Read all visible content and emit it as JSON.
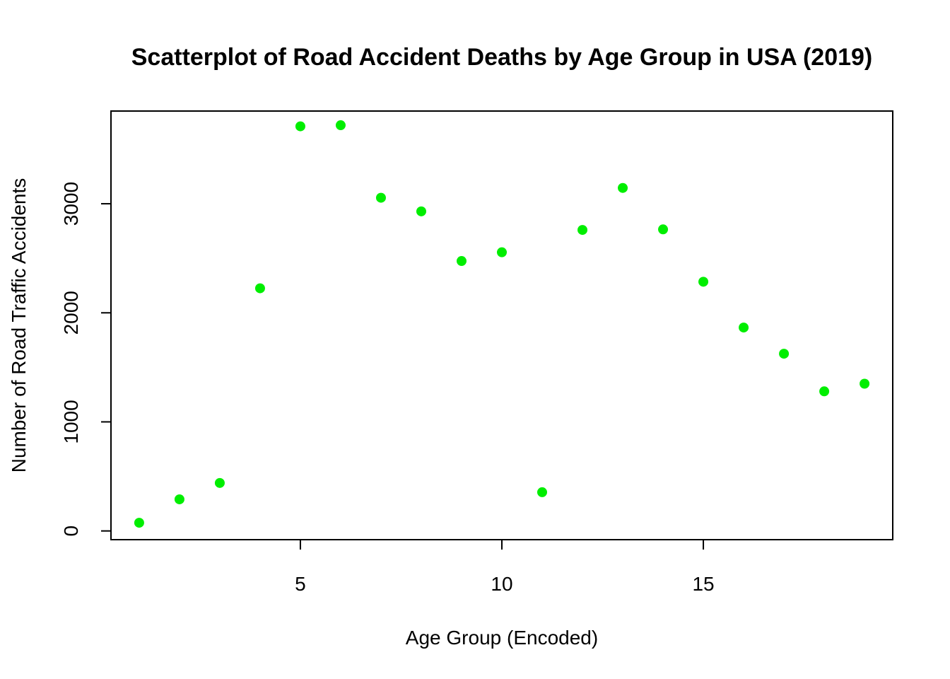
{
  "chart_data": {
    "type": "scatter",
    "title": "Scatterplot of Road Accident Deaths by Age Group in USA (2019)",
    "xlabel": "Age Group (Encoded)",
    "ylabel": "Number of Road Traffic Accidents",
    "xlim": [
      0.3,
      19.7
    ],
    "ylim": [
      -80,
      3850
    ],
    "x_ticks": [
      5,
      10,
      15
    ],
    "y_ticks": [
      0,
      1000,
      2000,
      3000
    ],
    "grid": false,
    "legend": "none",
    "point_color": "#00ee00",
    "x": [
      1,
      2,
      3,
      4,
      5,
      6,
      7,
      8,
      9,
      10,
      11,
      12,
      13,
      14,
      15,
      16,
      17,
      18,
      19
    ],
    "y": [
      75,
      290,
      440,
      2225,
      3710,
      3720,
      3055,
      2930,
      2475,
      2555,
      355,
      2760,
      3145,
      2765,
      2285,
      1865,
      1625,
      1280,
      1350
    ]
  }
}
